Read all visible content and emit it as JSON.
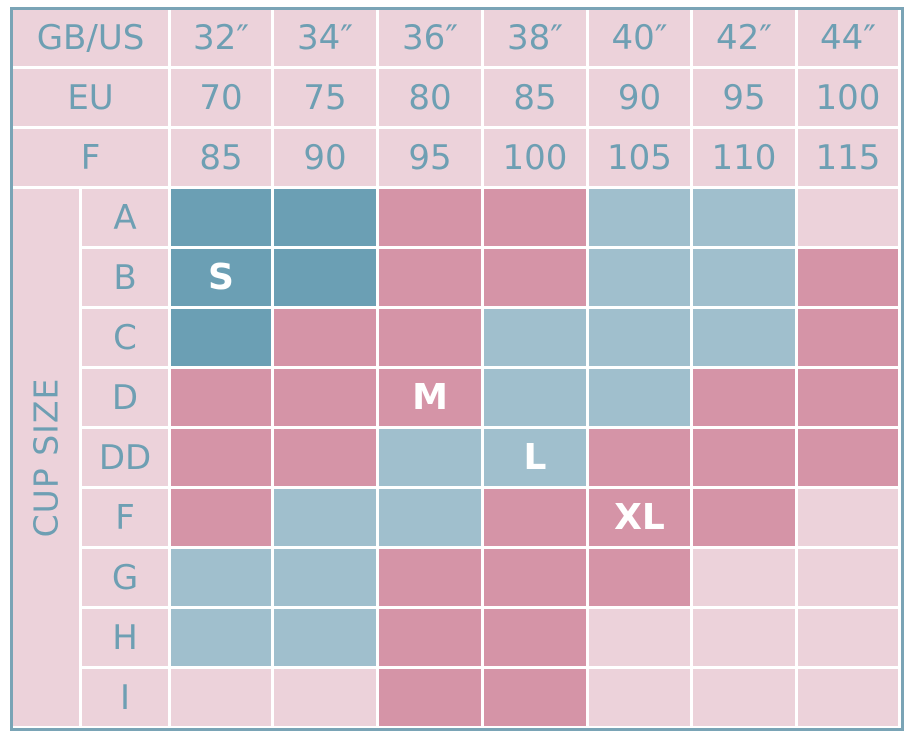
{
  "header_rows": [
    {
      "label": "GB/US",
      "values": [
        "32″",
        "34″",
        "36″",
        "38″",
        "40″",
        "42″",
        "44″"
      ]
    },
    {
      "label": "EU",
      "values": [
        "70",
        "75",
        "80",
        "85",
        "90",
        "95",
        "100"
      ]
    },
    {
      "label": "F",
      "values": [
        "85",
        "90",
        "95",
        "100",
        "105",
        "110",
        "115"
      ]
    }
  ],
  "cup_size_label": "CUP SIZE",
  "cup_sizes": [
    "A",
    "B",
    "C",
    "D",
    "DD",
    "F",
    "G",
    "H",
    "I"
  ],
  "size_labels": {
    "S": "S",
    "M": "M",
    "L": "L",
    "XL": "XL"
  },
  "colors": {
    "S": "#6b9fb4",
    "M": "#d594a7",
    "L": "#a0bfcd",
    "XL": "#d594a7",
    "none": "#ecd2da",
    "header_bg": "#ecd2da",
    "header_text": "#6e9fb3",
    "border": "#7aa4b6"
  },
  "grid": [
    [
      "S",
      "S",
      "M",
      "M",
      "L",
      "L",
      "none"
    ],
    [
      "S",
      "S",
      "M",
      "M",
      "L",
      "L",
      "XL"
    ],
    [
      "S",
      "M",
      "M",
      "L",
      "L",
      "L",
      "XL"
    ],
    [
      "M",
      "M",
      "M",
      "L",
      "L",
      "XL",
      "XL"
    ],
    [
      "M",
      "M",
      "L",
      "L",
      "XL",
      "XL",
      "XL"
    ],
    [
      "M",
      "L",
      "L",
      "M",
      "XL",
      "XL",
      "none"
    ],
    [
      "L",
      "L",
      "M",
      "M",
      "XL",
      "none",
      "none"
    ],
    [
      "L",
      "L",
      "M",
      "M",
      "none",
      "none",
      "none"
    ],
    [
      "none",
      "none",
      "M",
      "M",
      "none",
      "none",
      "none"
    ]
  ],
  "cell_labels": [
    {
      "row": 1,
      "col": 0,
      "key": "S"
    },
    {
      "row": 3,
      "col": 2,
      "key": "M"
    },
    {
      "row": 4,
      "col": 3,
      "key": "L"
    },
    {
      "row": 5,
      "col": 4,
      "key": "XL"
    }
  ]
}
